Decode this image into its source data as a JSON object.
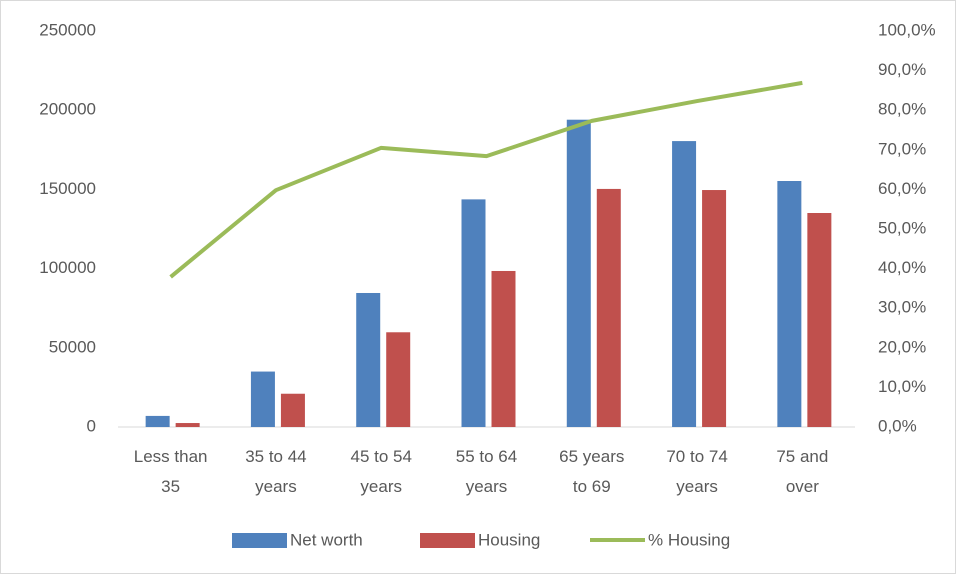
{
  "chart_data": {
    "type": "bar_line",
    "categories": [
      "Less than 35",
      "35 to 44 years",
      "45 to 54 years",
      "55 to 64 years",
      "65 years to 69",
      "70 to 74 years",
      "75 and over"
    ],
    "series": [
      {
        "name": "Net worth",
        "type": "bar",
        "color": "#4f81bd",
        "values": [
          7000,
          35000,
          84600,
          143700,
          194000,
          180500,
          155300
        ]
      },
      {
        "name": "Housing",
        "type": "bar",
        "color": "#c0504d",
        "values": [
          2500,
          21000,
          59800,
          98500,
          150300,
          149600,
          135100
        ]
      },
      {
        "name": "% Housing",
        "type": "line",
        "axis": "y2",
        "color": "#9bbb59",
        "values": [
          37.9,
          59.8,
          70.5,
          68.4,
          77.3,
          82.3,
          86.9
        ]
      }
    ],
    "ylim": [
      0,
      250000
    ],
    "yticks": [
      0,
      50000,
      100000,
      150000,
      200000,
      250000
    ],
    "y2lim": [
      0,
      100
    ],
    "y2ticks": [
      {
        "value": 0,
        "label": "0,0%"
      },
      {
        "value": 10,
        "label": "10,0%"
      },
      {
        "value": 20,
        "label": "20,0%"
      },
      {
        "value": 30,
        "label": "30,0%"
      },
      {
        "value": 40,
        "label": "40,0%"
      },
      {
        "value": 50,
        "label": "50,0%"
      },
      {
        "value": 60,
        "label": "60,0%"
      },
      {
        "value": 70,
        "label": "70,0%"
      },
      {
        "value": 80,
        "label": "80,0%"
      },
      {
        "value": 90,
        "label": "90,0%"
      },
      {
        "value": 100,
        "label": "100,0%"
      }
    ],
    "grid": false,
    "legend": "bottom"
  }
}
